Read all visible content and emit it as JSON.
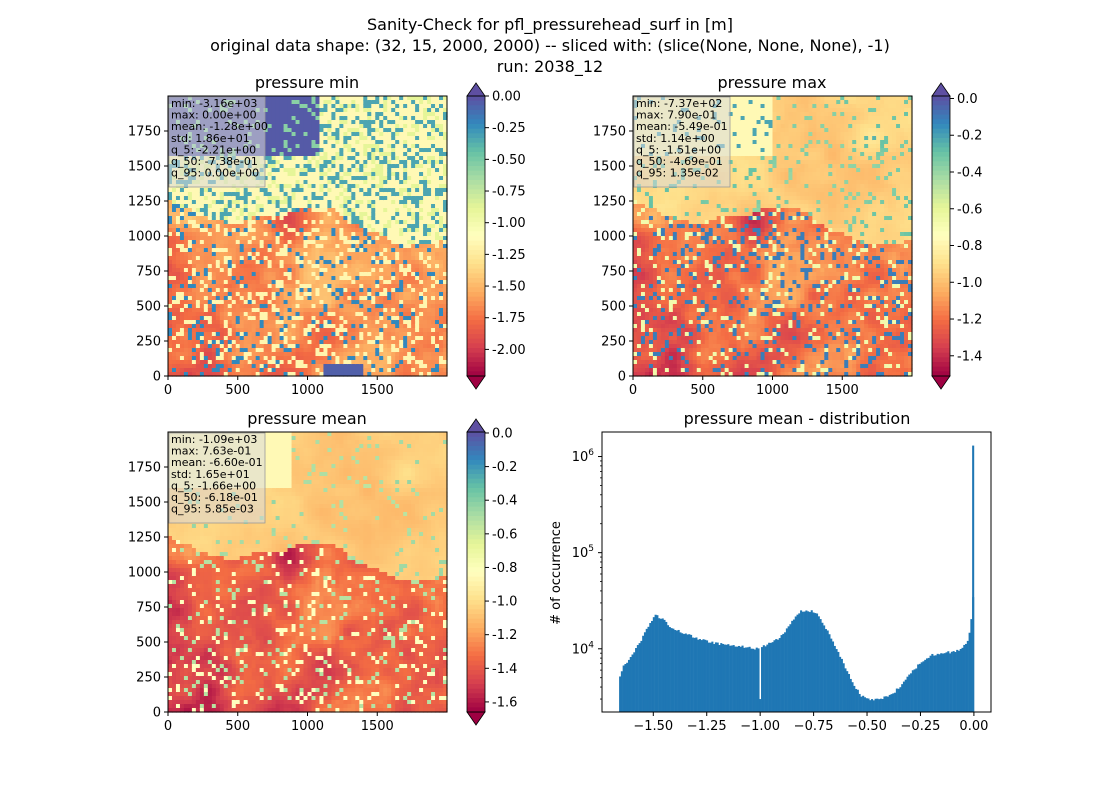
{
  "suptitle": [
    "Sanity-Check for pfl_pressurehead_surf in [m]",
    "original data shape: (32, 15, 2000, 2000) -- sliced with: (slice(None, None, None), -1)",
    "run: 2038_12"
  ],
  "colors": {
    "spectral": [
      "#9e0142",
      "#d53e4f",
      "#f46d43",
      "#fdae61",
      "#fee08b",
      "#ffffbf",
      "#e6f598",
      "#abdda4",
      "#66c2a5",
      "#3288bd",
      "#5e4fa2"
    ],
    "hist_bar": "#1f77b4"
  },
  "chart_data": [
    {
      "type": "heatmap",
      "title": "pressure min",
      "x_ticks": [
        0,
        500,
        1000,
        1500
      ],
      "y_ticks": [
        0,
        250,
        500,
        750,
        1000,
        1250,
        1500,
        1750
      ],
      "xlim": [
        0,
        2000
      ],
      "ylim": [
        0,
        2000
      ],
      "colorbar": {
        "min": -2.21,
        "max": 0.0,
        "ticks": [
          "0.00",
          "-0.25",
          "-0.50",
          "-0.75",
          "-1.00",
          "-1.25",
          "-1.50",
          "-1.75",
          "-2.00"
        ],
        "tick_values": [
          0,
          -0.25,
          -0.5,
          -0.75,
          -1.0,
          -1.25,
          -1.5,
          -1.75,
          -2.0
        ],
        "extend": "both"
      },
      "stats": [
        "min: -3.16e+03",
        "max: 0.00e+00",
        "mean: -1.28e+00",
        "std: 1.86e+01",
        "q_5: -2.21e+00",
        "q_50: -7.38e-01",
        "q_95: 0.00e+00"
      ]
    },
    {
      "type": "heatmap",
      "title": "pressure max",
      "x_ticks": [
        0,
        500,
        1000,
        1500
      ],
      "y_ticks": [
        0,
        250,
        500,
        750,
        1000,
        1250,
        1500,
        1750
      ],
      "xlim": [
        0,
        2000
      ],
      "ylim": [
        0,
        2000
      ],
      "colorbar": {
        "min": -1.51,
        "max": 0.0135,
        "ticks": [
          "0.0",
          "-0.2",
          "-0.4",
          "-0.6",
          "-0.8",
          "-1.0",
          "-1.2",
          "-1.4"
        ],
        "tick_values": [
          0,
          -0.2,
          -0.4,
          -0.6,
          -0.8,
          -1.0,
          -1.2,
          -1.4
        ],
        "extend": "both"
      },
      "stats": [
        "min: -7.37e+02",
        "max: 7.90e-01",
        "mean: -5.49e-01",
        "std: 1.14e+00",
        "q_5: -1.51e+00",
        "q_50: -4.69e-01",
        "q_95: 1.35e-02"
      ]
    },
    {
      "type": "heatmap",
      "title": "pressure mean",
      "x_ticks": [
        0,
        500,
        1000,
        1500
      ],
      "y_ticks": [
        0,
        250,
        500,
        750,
        1000,
        1250,
        1500,
        1750
      ],
      "xlim": [
        0,
        2000
      ],
      "ylim": [
        0,
        2000
      ],
      "colorbar": {
        "min": -1.66,
        "max": 0.00585,
        "ticks": [
          "0.0",
          "-0.2",
          "-0.4",
          "-0.6",
          "-0.8",
          "-1.0",
          "-1.2",
          "-1.4",
          "-1.6"
        ],
        "tick_values": [
          0,
          -0.2,
          -0.4,
          -0.6,
          -0.8,
          -1.0,
          -1.2,
          -1.4,
          -1.6
        ],
        "extend": "both"
      },
      "stats": [
        "min: -1.09e+03",
        "max: 7.63e-01",
        "mean: -6.60e-01",
        "std: 1.65e+01",
        "q_5: -1.66e+00",
        "q_50: -6.18e-01",
        "q_95: 5.85e-03"
      ]
    },
    {
      "type": "bar",
      "title": "pressure mean - distribution",
      "ylabel": "# of occurrence",
      "yscale": "log",
      "xlim": [
        -1.74,
        0.08
      ],
      "ylim": [
        2200,
        1800000
      ],
      "x_ticks": [
        -1.5,
        -1.25,
        -1.0,
        -0.75,
        -0.5,
        -0.25,
        0.0
      ],
      "x_tick_labels": [
        "−1.50",
        "−1.25",
        "−1.00",
        "−0.75",
        "−0.50",
        "−0.25",
        "0.00"
      ],
      "y_ticks": [
        10000,
        100000,
        1000000
      ],
      "y_tick_labels": [
        "10^4",
        "10^5",
        "10^6"
      ],
      "bin_width": 0.0083,
      "profile": [
        [
          -1.66,
          4800
        ],
        [
          -1.64,
          6500
        ],
        [
          -1.6,
          8500
        ],
        [
          -1.56,
          12000
        ],
        [
          -1.52,
          17500
        ],
        [
          -1.49,
          22500
        ],
        [
          -1.46,
          20500
        ],
        [
          -1.42,
          17000
        ],
        [
          -1.37,
          15000
        ],
        [
          -1.31,
          13200
        ],
        [
          -1.25,
          12000
        ],
        [
          -1.19,
          11200
        ],
        [
          -1.13,
          10800
        ],
        [
          -1.07,
          10400
        ],
        [
          -1.02,
          10000
        ],
        [
          -0.97,
          11000
        ],
        [
          -0.92,
          12500
        ],
        [
          -0.88,
          15500
        ],
        [
          -0.84,
          20500
        ],
        [
          -0.81,
          25000
        ],
        [
          -0.78,
          24500
        ],
        [
          -0.75,
          24500
        ],
        [
          -0.72,
          21000
        ],
        [
          -0.69,
          16000
        ],
        [
          -0.65,
          10800
        ],
        [
          -0.61,
          7000
        ],
        [
          -0.57,
          4500
        ],
        [
          -0.53,
          3300
        ],
        [
          -0.5,
          3000
        ],
        [
          -0.46,
          2950
        ],
        [
          -0.42,
          3100
        ],
        [
          -0.38,
          3400
        ],
        [
          -0.34,
          4200
        ],
        [
          -0.3,
          5400
        ],
        [
          -0.25,
          7200
        ],
        [
          -0.2,
          8600
        ],
        [
          -0.15,
          9000
        ],
        [
          -0.1,
          9300
        ],
        [
          -0.06,
          10000
        ],
        [
          -0.03,
          11500
        ],
        [
          -0.015,
          17000
        ],
        [
          -0.005,
          35000
        ]
      ],
      "spike": {
        "x": 0.0,
        "count": 1300000
      },
      "gap": {
        "x": -1.0,
        "count": 3000
      }
    }
  ]
}
